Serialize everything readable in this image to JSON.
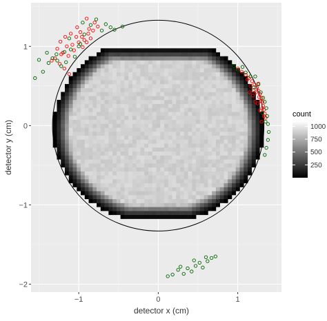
{
  "chart_data": {
    "type": "heatmap",
    "title": "",
    "xlabel": "detector x (cm)",
    "ylabel": "detector y (cm)",
    "xlim": [
      -1.6,
      1.55
    ],
    "ylim": [
      -2.1,
      1.55
    ],
    "x_ticks": [
      -1,
      0,
      1
    ],
    "x_tick_labels": [
      "−1",
      "0",
      "1"
    ],
    "y_ticks": [
      -2,
      -1,
      0,
      1
    ],
    "y_tick_labels": [
      "−2",
      "−1",
      "0",
      "1"
    ],
    "grid": true,
    "background": "#ebebeb",
    "heatmap": {
      "description_kind": "2d-histogram",
      "bin_size": 0.05,
      "center": [
        0.0,
        -0.05
      ],
      "radius_x": 1.32,
      "radius_y": 1.18,
      "top_clip_y": 0.98,
      "bottom_clip_y": -1.17,
      "right_clip_x": 1.33,
      "count_range": [
        0,
        1100
      ],
      "colormap": [
        "#000000",
        "#ffffff"
      ],
      "plateau_count": 950
    },
    "reference_circle": {
      "cx": 0.0,
      "cy": 0.0,
      "r": 1.33,
      "color": "#000000"
    },
    "legend": {
      "title": "count",
      "position": "right",
      "ticks": [
        250,
        500,
        750,
        1000
      ],
      "tick_labels": [
        "250",
        "500",
        "750",
        "1000"
      ]
    },
    "series": [
      {
        "color": "#ff0000",
        "marker": "open-circle",
        "points": [
          [
            -1.23,
            1.06
          ],
          [
            -1.17,
            1.12
          ],
          [
            -1.1,
            1.16
          ],
          [
            -1.03,
            1.12
          ],
          [
            -0.98,
            1.18
          ],
          [
            -0.93,
            1.08
          ],
          [
            -0.88,
            1.16
          ],
          [
            -0.82,
            1.2
          ],
          [
            -1.27,
            0.97
          ],
          [
            -1.2,
            0.92
          ],
          [
            -1.13,
            0.88
          ],
          [
            -1.06,
            0.95
          ],
          [
            -1.0,
            1.05
          ],
          [
            -0.95,
            0.99
          ],
          [
            -1.3,
            0.85
          ],
          [
            -1.24,
            0.78
          ],
          [
            -1.18,
            0.72
          ],
          [
            -1.12,
            0.65
          ],
          [
            -0.9,
            1.05
          ],
          [
            -0.85,
            1.1
          ],
          [
            -0.8,
            1.3
          ],
          [
            -0.9,
            1.35
          ],
          [
            -0.76,
            1.25
          ],
          [
            -1.02,
            1.24
          ],
          [
            -0.87,
            1.22
          ],
          [
            -1.15,
            1.0
          ],
          [
            -1.08,
            1.02
          ],
          [
            -0.96,
            1.12
          ],
          [
            -1.22,
            0.9
          ],
          [
            -1.34,
            0.82
          ],
          [
            1.0,
            0.72
          ],
          [
            1.05,
            0.68
          ],
          [
            1.1,
            0.64
          ],
          [
            1.14,
            0.6
          ],
          [
            1.18,
            0.56
          ],
          [
            1.21,
            0.52
          ],
          [
            1.24,
            0.48
          ],
          [
            1.26,
            0.44
          ],
          [
            1.28,
            0.4
          ],
          [
            1.3,
            0.35
          ],
          [
            1.31,
            0.3
          ],
          [
            1.32,
            0.25
          ],
          [
            1.33,
            0.2
          ],
          [
            1.34,
            0.15
          ],
          [
            1.35,
            0.1
          ],
          [
            1.16,
            0.5
          ],
          [
            1.2,
            0.45
          ],
          [
            1.23,
            0.42
          ],
          [
            1.27,
            0.36
          ],
          [
            1.29,
            0.31
          ],
          [
            1.31,
            0.22
          ],
          [
            1.33,
            0.12
          ],
          [
            1.12,
            0.58
          ],
          [
            1.19,
            0.38
          ],
          [
            1.25,
            0.28
          ],
          [
            1.28,
            0.19
          ],
          [
            1.3,
            0.05
          ],
          [
            1.22,
            0.3
          ],
          [
            1.15,
            0.42
          ],
          [
            1.26,
            0.53
          ]
        ]
      },
      {
        "color": "#006400",
        "marker": "open-circle",
        "points": [
          [
            -1.5,
            0.83
          ],
          [
            -1.4,
            0.92
          ],
          [
            -1.38,
            0.79
          ],
          [
            -1.33,
            0.85
          ],
          [
            -1.27,
            0.82
          ],
          [
            -1.22,
            0.75
          ],
          [
            -1.16,
            0.8
          ],
          [
            -1.1,
            0.96
          ],
          [
            -1.05,
            0.87
          ],
          [
            -0.98,
            1.03
          ],
          [
            -0.93,
            1.15
          ],
          [
            -0.85,
            1.27
          ],
          [
            -0.78,
            1.34
          ],
          [
            -0.71,
            1.2
          ],
          [
            -0.66,
            1.28
          ],
          [
            -0.6,
            1.24
          ],
          [
            -0.55,
            1.21
          ],
          [
            -0.45,
            1.25
          ],
          [
            -1.55,
            0.6
          ],
          [
            -1.45,
            0.68
          ],
          [
            -1.28,
            0.9
          ],
          [
            -1.18,
            0.93
          ],
          [
            -1.12,
            1.1
          ],
          [
            -1.0,
            1.0
          ],
          [
            -0.95,
            1.3
          ],
          [
            0.95,
            0.75
          ],
          [
            1.0,
            0.7
          ],
          [
            1.06,
            0.74
          ],
          [
            1.1,
            0.67
          ],
          [
            1.16,
            0.62
          ],
          [
            1.2,
            0.48
          ],
          [
            1.22,
            0.62
          ],
          [
            1.26,
            0.52
          ],
          [
            1.29,
            0.42
          ],
          [
            1.32,
            0.35
          ],
          [
            1.34,
            0.3
          ],
          [
            1.36,
            0.22
          ],
          [
            1.37,
            0.12
          ],
          [
            1.38,
            0.02
          ],
          [
            1.39,
            -0.08
          ],
          [
            1.38,
            -0.18
          ],
          [
            1.36,
            -0.28
          ],
          [
            1.34,
            -0.37
          ],
          [
            1.35,
            0.05
          ],
          [
            1.31,
            0.16
          ],
          [
            0.18,
            -1.88
          ],
          [
            0.25,
            -1.82
          ],
          [
            0.32,
            -1.87
          ],
          [
            0.37,
            -1.8
          ],
          [
            0.42,
            -1.84
          ],
          [
            0.47,
            -1.77
          ],
          [
            0.52,
            -1.73
          ],
          [
            0.56,
            -1.79
          ],
          [
            0.62,
            -1.71
          ],
          [
            0.67,
            -1.67
          ],
          [
            0.72,
            -1.65
          ],
          [
            0.12,
            -1.9
          ],
          [
            0.28,
            -1.78
          ],
          [
            0.45,
            -1.7
          ],
          [
            0.6,
            -1.66
          ]
        ]
      }
    ]
  }
}
